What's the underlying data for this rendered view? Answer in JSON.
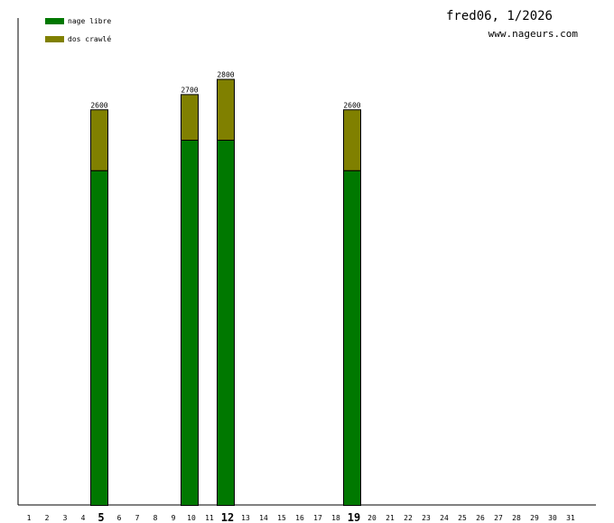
{
  "header": {
    "title": "fred06, 1/2026",
    "site": "www.nageurs.com"
  },
  "chart_data": {
    "type": "bar",
    "stacked": true,
    "categories": [
      "1",
      "2",
      "3",
      "4",
      "5",
      "6",
      "7",
      "8",
      "9",
      "10",
      "11",
      "12",
      "13",
      "14",
      "15",
      "16",
      "17",
      "18",
      "19",
      "20",
      "21",
      "22",
      "23",
      "24",
      "25",
      "26",
      "27",
      "28",
      "29",
      "30",
      "31"
    ],
    "highlighted_categories": [
      "5",
      "12",
      "19"
    ],
    "series": [
      {
        "name": "nage libre",
        "color": "#007800",
        "values": [
          0,
          0,
          0,
          0,
          2200,
          0,
          0,
          0,
          0,
          2400,
          0,
          2400,
          0,
          0,
          0,
          0,
          0,
          0,
          2200,
          0,
          0,
          0,
          0,
          0,
          0,
          0,
          0,
          0,
          0,
          0,
          0
        ]
      },
      {
        "name": "dos crawlé",
        "color": "#808000",
        "values": [
          0,
          0,
          0,
          0,
          400,
          0,
          0,
          0,
          0,
          300,
          0,
          400,
          0,
          0,
          0,
          0,
          0,
          0,
          400,
          0,
          0,
          0,
          0,
          0,
          0,
          0,
          0,
          0,
          0,
          0,
          0
        ]
      }
    ],
    "totals": [
      {
        "category": "5",
        "label": "2600"
      },
      {
        "category": "10",
        "label": "2700"
      },
      {
        "category": "12",
        "label": "2800"
      },
      {
        "category": "19",
        "label": "2600"
      }
    ],
    "ylim": [
      0,
      3200
    ],
    "legend": "top-left"
  }
}
